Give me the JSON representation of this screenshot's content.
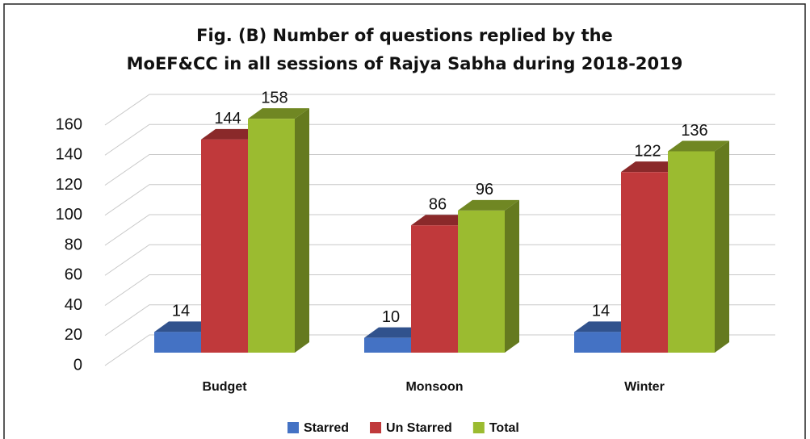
{
  "chart_data": {
    "type": "bar3d",
    "title": [
      "Fig. (B) Number of questions replied by the",
      "MoEF&CC in all sessions of Rajya Sabha during 2018-2019"
    ],
    "categories": [
      "Budget",
      "Monsoon",
      "Winter"
    ],
    "series": [
      {
        "name": "Starred",
        "color": "#4472c4",
        "values": [
          14,
          10,
          14
        ]
      },
      {
        "name": "Un Starred",
        "color": "#c0393b",
        "values": [
          144,
          86,
          122
        ]
      },
      {
        "name": "Total",
        "color": "#9bbb30",
        "values": [
          158,
          96,
          136
        ]
      }
    ],
    "ylim": [
      0,
      160
    ],
    "yticks": [
      0,
      20,
      40,
      60,
      80,
      100,
      120,
      140,
      160
    ],
    "grid": true,
    "legend": "bottom"
  }
}
